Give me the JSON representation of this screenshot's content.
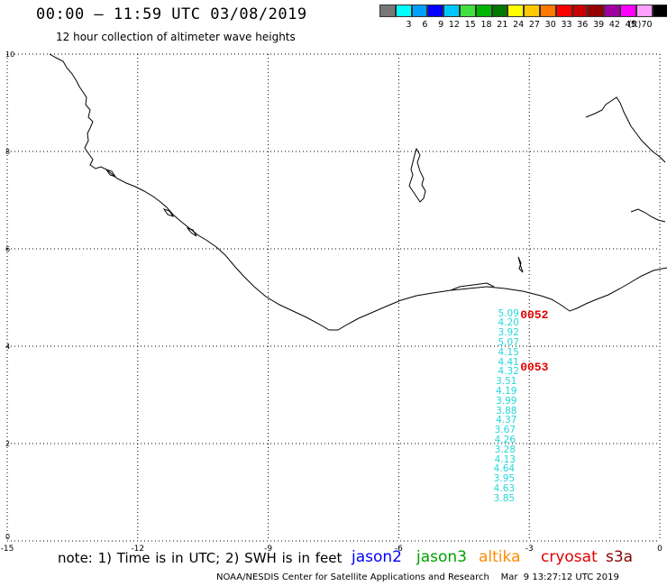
{
  "header": {
    "title": "00:00 – 11:59 UTC 03/08/2019",
    "subtitle": "12 hour collection of altimeter wave heights"
  },
  "legend": {
    "unit": "(ft)",
    "items": [
      {
        "label": "",
        "color": "#787878"
      },
      {
        "label": "3",
        "color": "#00ffff"
      },
      {
        "label": "6",
        "color": "#00a0ff"
      },
      {
        "label": "9",
        "color": "#0000ff"
      },
      {
        "label": "12",
        "color": "#00c8ff"
      },
      {
        "label": "15",
        "color": "#40e040"
      },
      {
        "label": "18",
        "color": "#00b400"
      },
      {
        "label": "21",
        "color": "#007800"
      },
      {
        "label": "24",
        "color": "#ffff00"
      },
      {
        "label": "27",
        "color": "#ffc800"
      },
      {
        "label": "30",
        "color": "#ff7800"
      },
      {
        "label": "33",
        "color": "#ff0000"
      },
      {
        "label": "36",
        "color": "#c80000"
      },
      {
        "label": "39",
        "color": "#960000"
      },
      {
        "label": "42",
        "color": "#a000a0"
      },
      {
        "label": "45",
        "color": "#ff00ff"
      },
      {
        "label": "70",
        "color": "#ffa0ff"
      },
      {
        "label": "",
        "color": "#000000"
      }
    ]
  },
  "axes": {
    "x_ticks": [
      "-15",
      "-12",
      "-9",
      "-6",
      "-3",
      "0"
    ],
    "y_ticks": [
      "0",
      "2",
      "4",
      "6",
      "8",
      "10"
    ],
    "x_range": [
      -15,
      0
    ],
    "y_range": [
      0,
      10
    ]
  },
  "track": {
    "color": "#25d8d8",
    "points": [
      {
        "lon": -3.4,
        "lat": 4.62,
        "swh": "5.09"
      },
      {
        "lon": -3.4,
        "lat": 4.42,
        "swh": "4.20"
      },
      {
        "lon": -3.4,
        "lat": 4.22,
        "swh": "3.92"
      },
      {
        "lon": -3.4,
        "lat": 4.02,
        "swh": "5.07"
      },
      {
        "lon": -3.4,
        "lat": 3.82,
        "swh": "4.15"
      },
      {
        "lon": -3.4,
        "lat": 3.62,
        "swh": "4.41"
      },
      {
        "lon": -3.4,
        "lat": 3.42,
        "swh": "4.32"
      },
      {
        "lon": -3.45,
        "lat": 3.22,
        "swh": "3.51"
      },
      {
        "lon": -3.45,
        "lat": 3.02,
        "swh": "4.19"
      },
      {
        "lon": -3.45,
        "lat": 2.82,
        "swh": "3.99"
      },
      {
        "lon": -3.45,
        "lat": 2.62,
        "swh": "3.88"
      },
      {
        "lon": -3.45,
        "lat": 2.42,
        "swh": "4.37"
      },
      {
        "lon": -3.48,
        "lat": 2.22,
        "swh": "3.67"
      },
      {
        "lon": -3.48,
        "lat": 2.02,
        "swh": "4.26"
      },
      {
        "lon": -3.48,
        "lat": 1.82,
        "swh": "3.28"
      },
      {
        "lon": -3.48,
        "lat": 1.62,
        "swh": "4.13"
      },
      {
        "lon": -3.5,
        "lat": 1.42,
        "swh": "4.64"
      },
      {
        "lon": -3.5,
        "lat": 1.22,
        "swh": "3.95"
      },
      {
        "lon": -3.5,
        "lat": 1.02,
        "swh": "4.63"
      },
      {
        "lon": -3.5,
        "lat": 0.82,
        "swh": "3.85"
      }
    ]
  },
  "pass_labels": [
    {
      "text": "0052",
      "lon": -3.0,
      "lat": 4.62
    },
    {
      "text": "0053",
      "lon": -3.0,
      "lat": 3.53
    }
  ],
  "note": "note: 1) Time is in UTC; 2) SWH is in feet",
  "satellites": [
    {
      "name": "jason2",
      "color": "#0000ff"
    },
    {
      "name": "jason3",
      "color": "#00a000"
    },
    {
      "name": "altika",
      "color": "#ff8c00"
    },
    {
      "name": "cryosat",
      "color": "#e00000"
    },
    {
      "name": "s3a",
      "color": "#8b0000"
    }
  ],
  "credit": "NOAA/NESDIS Center for Satellite Applications and Research    Mar  9 13:27:12 UTC 2019"
}
